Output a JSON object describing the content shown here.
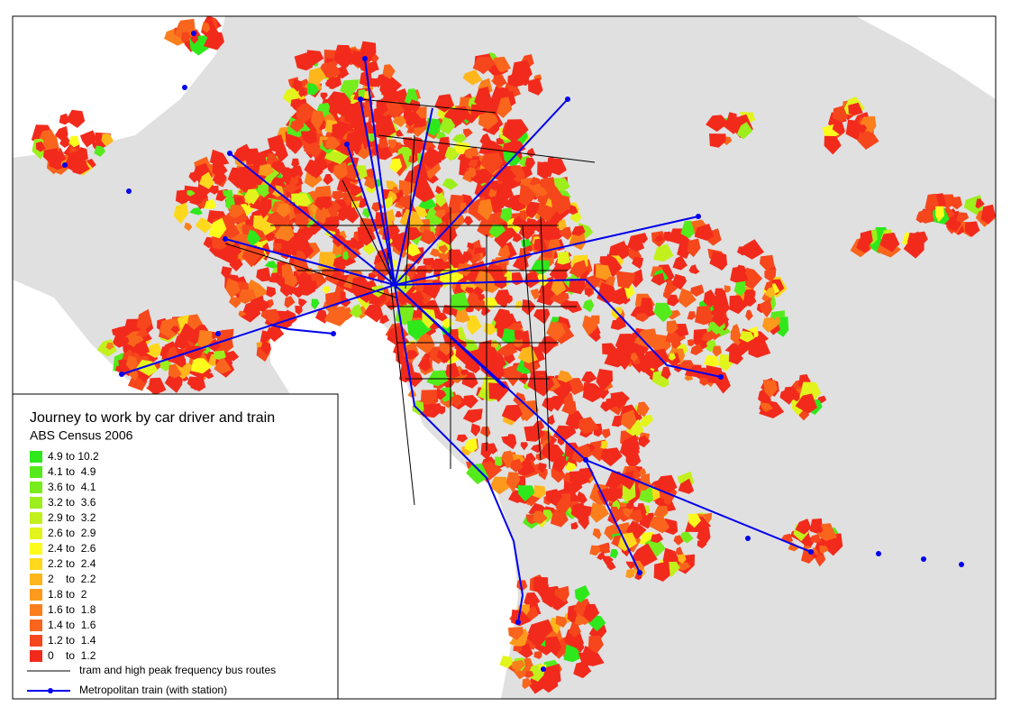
{
  "legend": {
    "title": "Journey to work by car driver and train",
    "subtitle": "ABS Census 2006",
    "items": [
      {
        "label": "4.9 to 10.2",
        "color": "#2ee81c"
      },
      {
        "label": "4.1 to  4.9",
        "color": "#55ea1c"
      },
      {
        "label": "3.6 to  4.1",
        "color": "#78ec1c"
      },
      {
        "label": "3.2 to  3.6",
        "color": "#9cee1c"
      },
      {
        "label": "2.9 to  3.2",
        "color": "#c2f01c"
      },
      {
        "label": "2.6 to  2.9",
        "color": "#e2f41c"
      },
      {
        "label": "2.4 to  2.6",
        "color": "#fdfb1c"
      },
      {
        "label": "2.2 to  2.4",
        "color": "#fed81c"
      },
      {
        "label": "2    to  2.2",
        "color": "#feb61c"
      },
      {
        "label": "1.8 to  2",
        "color": "#fd991c"
      },
      {
        "label": "1.6 to  1.8",
        "color": "#fb7f1c"
      },
      {
        "label": "1.4 to  1.6",
        "color": "#f9651c"
      },
      {
        "label": "1.2 to  1.4",
        "color": "#f6461c"
      },
      {
        "label": "0    to  1.2",
        "color": "#f22a1c"
      }
    ],
    "lines": [
      {
        "label": "tram and high peak frequency bus routes",
        "color": "#000000"
      },
      {
        "label": "Metropolitan train (with station)",
        "color": "#0000ee"
      }
    ]
  }
}
